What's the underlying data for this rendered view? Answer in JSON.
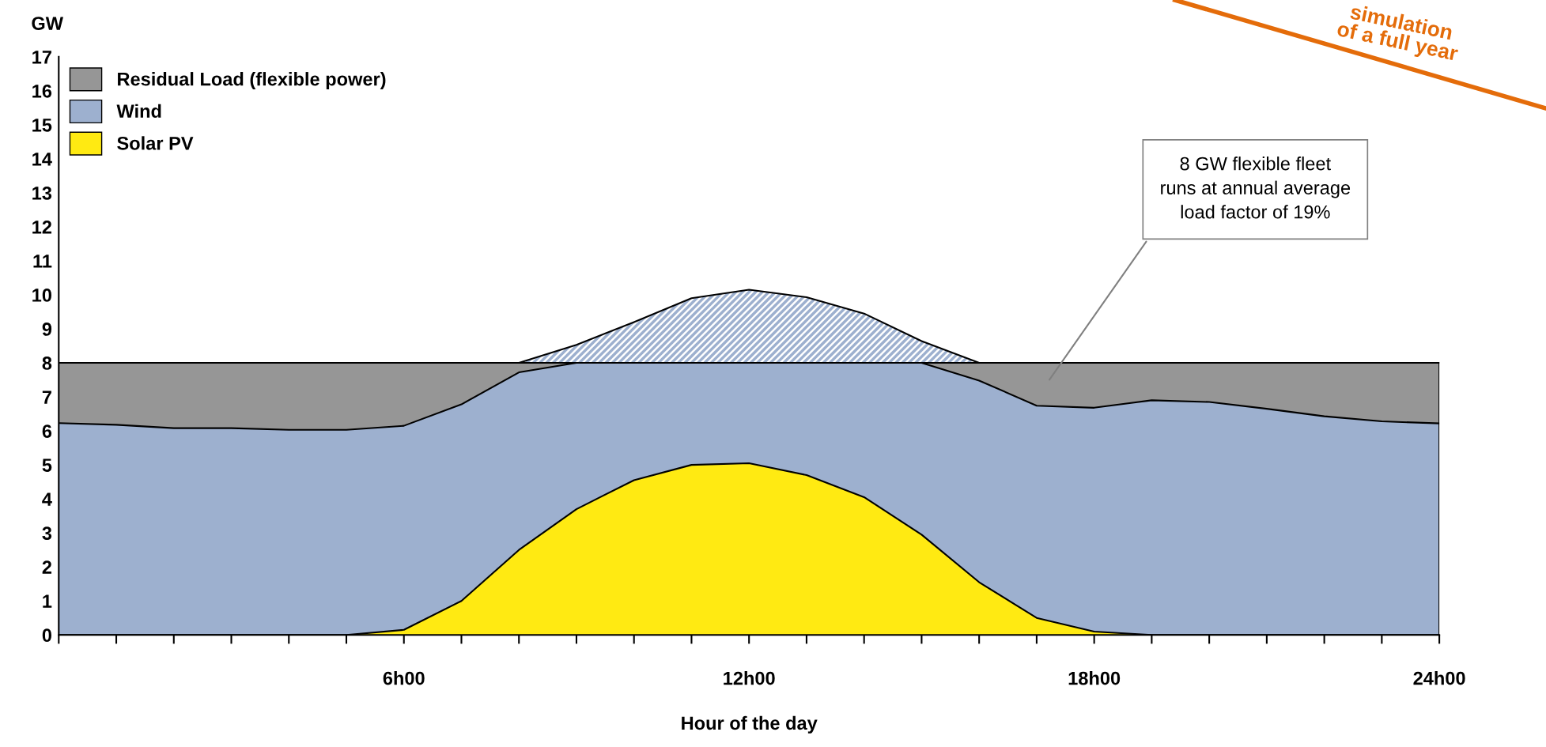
{
  "chart_data": {
    "type": "area",
    "stacked": true,
    "ylabel": "GW",
    "xlabel": "Hour of the day",
    "categories": [
      null,
      null,
      null,
      null,
      null,
      null,
      "6h00",
      null,
      null,
      null,
      null,
      null,
      "12h00",
      null,
      null,
      null,
      null,
      null,
      "18h00",
      null,
      null,
      null,
      null,
      null,
      "24h00"
    ],
    "series": [
      {
        "name": "Solar PV",
        "color": "#ffea12",
        "values": [
          0,
          0,
          0,
          0,
          0,
          0,
          0.15,
          1.0,
          2.5,
          3.7,
          4.55,
          5.0,
          5.05,
          4.7,
          4.05,
          2.95,
          1.55,
          0.5,
          0.1,
          0,
          0,
          0,
          0,
          0,
          0
        ]
      },
      {
        "name": "Wind",
        "color": "#9db0cf",
        "values": [
          6.23,
          6.18,
          6.08,
          6.08,
          6.03,
          6.03,
          6.0,
          5.78,
          5.22,
          4.3,
          3.45,
          3.0,
          2.95,
          3.3,
          3.95,
          5.05,
          5.93,
          6.24,
          6.58,
          6.9,
          6.85,
          6.65,
          6.43,
          6.28,
          6.22
        ]
      },
      {
        "name": "Residual Load (flexible power)",
        "color": "#969696",
        "values": [
          1.77,
          1.82,
          1.92,
          1.92,
          1.97,
          1.97,
          1.85,
          1.22,
          0.28,
          0,
          0,
          0,
          0,
          0,
          0,
          0,
          0.52,
          1.26,
          1.32,
          1.1,
          1.15,
          1.35,
          1.57,
          1.72,
          1.78
        ]
      },
      {
        "color": "#9db0cf",
        "values": [
          0,
          0,
          0,
          0,
          0,
          0,
          0,
          0,
          0,
          0.53,
          1.2,
          1.9,
          2.15,
          1.93,
          1.45,
          0.64,
          0,
          0,
          0,
          0,
          0,
          0,
          0,
          0,
          0
        ]
      }
    ],
    "ylim": [
      0,
      17
    ],
    "yticks": [
      0,
      1,
      2,
      3,
      4,
      5,
      6,
      7,
      8,
      9,
      10,
      11,
      12,
      13,
      14,
      15,
      16,
      17
    ],
    "annotations": [
      "8 GW flexible fleet\nruns at annual average\nload factor of 19%",
      "simulation\nof a full year"
    ],
    "legend": "top left",
    "grid": false
  }
}
